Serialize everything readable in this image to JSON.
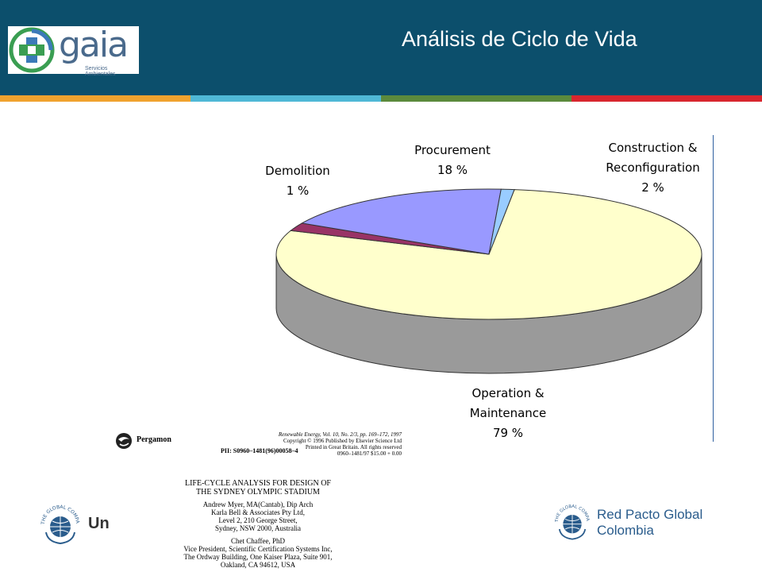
{
  "header": {
    "title": "Análisis de Ciclo de Vida",
    "logo_name": "gaia",
    "logo_tagline": "Servicios Ambientales",
    "stripe_colors": [
      "#f0a22e",
      "#4fb8d6",
      "#5b8a3c",
      "#d8262e"
    ]
  },
  "chart_data": {
    "type": "pie",
    "style": "3d",
    "slices": [
      {
        "name": "Operation & Maintenance",
        "label_line1": "Operation &",
        "label_line2": "Maintenance",
        "value": 79,
        "label": "79 %",
        "color": "#ffffcc"
      },
      {
        "name": "Construction & Reconfiguration",
        "label_line1": "Construction &",
        "label_line2": "Reconfiguration",
        "value": 2,
        "label": "2 %",
        "color": "#993366"
      },
      {
        "name": "Procurement",
        "label_line1": "Procurement",
        "value": 18,
        "label": "18 %",
        "color": "#9999ff"
      },
      {
        "name": "Demolition",
        "label_line1": "Demolition",
        "value": 1,
        "label": "1 %",
        "color": "#99ccff"
      }
    ]
  },
  "paper": {
    "publisher": "Pergamon",
    "journal_line": "Renewable Energy, Vol. 10, No. 2/3, pp. 169–172, 1997",
    "copyright_line": "Copyright © 1996 Published by Elsevier Science Ltd",
    "printed_line": "Printed in Great Britain. All rights reserved",
    "price_line": "0960–1481/97 $15.00 + 0.00",
    "pii": "PII: S0960–1481(96)00058–4",
    "title_line1": "LIFE-CYCLE ANALYSIS FOR DESIGN OF",
    "title_line2": "THE SYDNEY OLYMPIC STADIUM",
    "author1_lines": [
      "Andrew Myer, MA(Cantab), Dip Arch",
      "Karla Bell & Associates Pty Ltd,",
      "Level 2, 210 George Street,",
      "Sydney, NSW 2000, Australia"
    ],
    "author2_lines": [
      "Chet Chaffee, PhD",
      "Vice President, Scientific Certification Systems Inc,",
      "The Ordway Building, One Kaiser Plaza, Suite 901,",
      "Oakland, CA 94612, USA"
    ]
  },
  "footer": {
    "global_compact_seal": "THE GLOBAL COMPACT",
    "global_compact_text": "Un",
    "red_pacto_line1": "Red Pacto Global",
    "red_pacto_line2": "Colombia"
  }
}
